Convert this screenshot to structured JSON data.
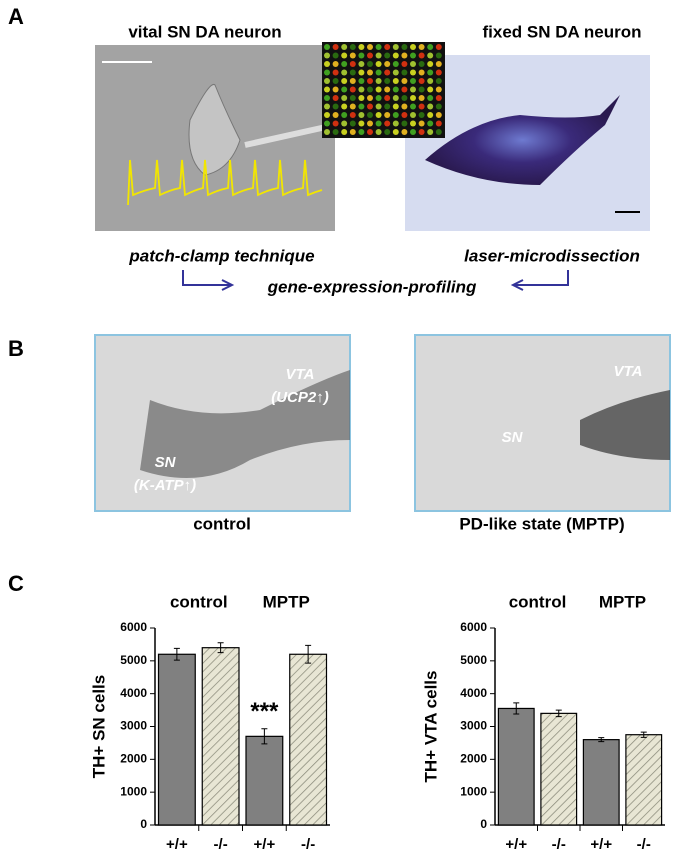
{
  "panel_a": {
    "label": "A",
    "left_title": "vital SN DA neuron",
    "right_title": "fixed SN DA neuron",
    "left_caption": "patch-clamp technique",
    "right_caption": "laser-microdissection",
    "center_caption": "gene-expression-profiling"
  },
  "panel_b": {
    "label": "B",
    "left_labels": [
      "VTA",
      "(UCP2↑)",
      "SN",
      "(K-ATP↑)"
    ],
    "left_caption": "control",
    "right_labels": [
      "VTA",
      "SN"
    ],
    "right_caption": "PD-like state (MPTP)"
  },
  "panel_c": {
    "label": "C"
  },
  "chart_data": [
    {
      "type": "bar",
      "ylabel": "TH+ SN cells",
      "groups": [
        "control",
        "MPTP"
      ],
      "categories": [
        "+/+",
        "-/-",
        "+/+",
        "-/-"
      ],
      "values": [
        5200,
        5400,
        2700,
        5200
      ],
      "errors": [
        180,
        150,
        230,
        270
      ],
      "colors": [
        "#808080",
        "#e8e6d4",
        "#808080",
        "#e8e6d4"
      ],
      "hatched": [
        false,
        true,
        false,
        true
      ],
      "annotation": "***",
      "annotation_bar": 2,
      "ylim": [
        0,
        6000
      ],
      "yticks": [
        0,
        1000,
        2000,
        3000,
        4000,
        5000,
        6000
      ]
    },
    {
      "type": "bar",
      "ylabel": "TH+ VTA cells",
      "groups": [
        "control",
        "MPTP"
      ],
      "categories": [
        "+/+",
        "-/-",
        "+/+",
        "-/-"
      ],
      "values": [
        3550,
        3400,
        2600,
        2750
      ],
      "errors": [
        170,
        100,
        60,
        80
      ],
      "colors": [
        "#808080",
        "#e8e6d4",
        "#808080",
        "#e8e6d4"
      ],
      "hatched": [
        false,
        true,
        false,
        true
      ],
      "ylim": [
        0,
        6000
      ],
      "yticks": [
        0,
        1000,
        2000,
        3000,
        4000,
        5000,
        6000
      ]
    }
  ]
}
